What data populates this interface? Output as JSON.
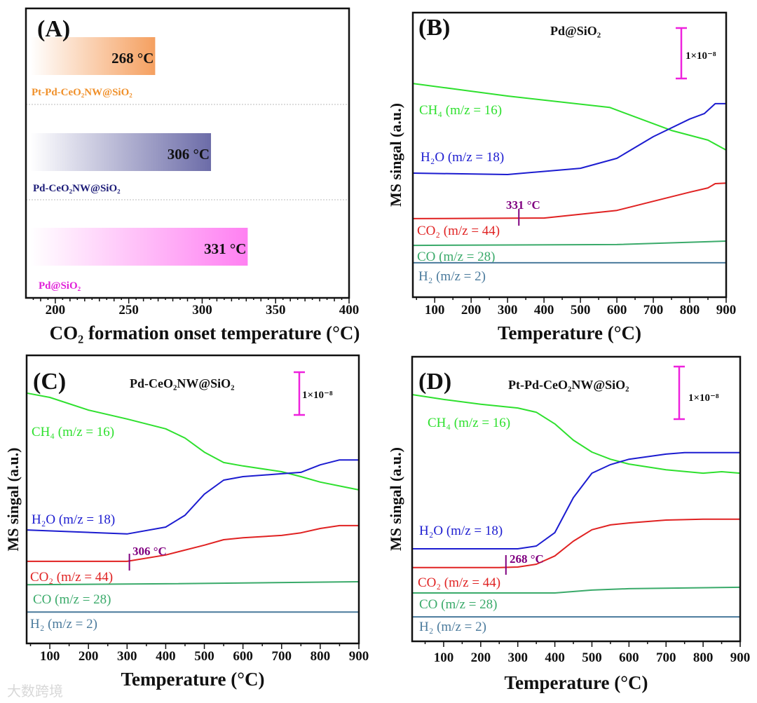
{
  "watermark": "大数跨境",
  "chart_data": [
    {
      "panel": "A",
      "type": "bar",
      "orientation": "horizontal",
      "title": "(A)",
      "categories": [
        "Pt-Pd-CeO₂NW@SiO₂",
        "Pd-CeO₂NW@SiO₂",
        "Pd@SiO₂"
      ],
      "values": [
        268,
        306,
        331
      ],
      "value_labels": [
        "268 °C",
        "306 °C",
        "331 °C"
      ],
      "colors": [
        "#f5a060",
        "#6c6ca8",
        "#ff80f2"
      ],
      "label_colors": [
        "#f0902a",
        "#1c1c78",
        "#e020d8"
      ],
      "xlabel": "CO₂ formation onset temperature (°C)",
      "xlim": [
        180,
        400
      ],
      "xticks": [
        "200",
        "250",
        "300",
        "350",
        "400"
      ]
    },
    {
      "panel": "B",
      "type": "line",
      "title": "(B)",
      "sample": "Pd@SiO₂",
      "xlabel": "Temperature (°C)",
      "ylabel": "MS singal (a.u.)",
      "xlim": [
        40,
        900
      ],
      "ylim": [
        0,
        100
      ],
      "xticks": [
        "100",
        "200",
        "300",
        "400",
        "500",
        "600",
        "700",
        "800",
        "900"
      ],
      "scale_bar_label": "1×10⁻⁸",
      "onset": {
        "temperature": 331,
        "label": "331 °C"
      },
      "series": [
        {
          "name": "CH₄ (m/z = 16)",
          "color": "#2ee02e",
          "x": [
            40,
            300,
            580,
            750,
            850,
            900
          ],
          "y": [
            75.1,
            70.7,
            66.7,
            58.6,
            55.2,
            51.7
          ]
        },
        {
          "name": "H₂O (m/z = 18)",
          "color": "#1c1cd0",
          "x": [
            40,
            300,
            500,
            600,
            700,
            800,
            840,
            870,
            900
          ],
          "y": [
            43.6,
            43.1,
            45.3,
            48.8,
            56.4,
            62.6,
            64.5,
            68.0,
            68.0
          ]
        },
        {
          "name": "CO₂ (m/z = 44)",
          "color": "#e02222",
          "x": [
            40,
            400,
            600,
            700,
            800,
            850,
            870,
            900
          ],
          "y": [
            27.6,
            27.8,
            30.5,
            33.7,
            36.9,
            38.4,
            39.9,
            40.1
          ]
        },
        {
          "name": "CO (m/z = 28)",
          "color": "#3aaa6a",
          "x": [
            40,
            600,
            900
          ],
          "y": [
            18.2,
            18.5,
            19.7
          ]
        },
        {
          "name": "H₂ (m/z = 2)",
          "color": "#4a7a9c",
          "x": [
            40,
            900
          ],
          "y": [
            12.1,
            12.1
          ]
        }
      ]
    },
    {
      "panel": "C",
      "type": "line",
      "title": "(C)",
      "sample": "Pd-CeO₂NW@SiO₂",
      "xlabel": "Temperature (°C)",
      "ylabel": "MS singal (a.u.)",
      "xlim": [
        40,
        900
      ],
      "ylim": [
        0,
        100
      ],
      "xticks": [
        "100",
        "200",
        "300",
        "400",
        "500",
        "600",
        "700",
        "800",
        "900"
      ],
      "scale_bar_label": "1×10⁻⁸",
      "onset": {
        "temperature": 306,
        "label": "306 °C"
      },
      "series": [
        {
          "name": "CH₄ (m/z = 16)",
          "color": "#2ee02e",
          "x": [
            40,
            100,
            200,
            300,
            400,
            450,
            500,
            550,
            600,
            700,
            750,
            800,
            900
          ],
          "y": [
            86.9,
            85.4,
            81.0,
            77.9,
            74.5,
            71.3,
            66.4,
            62.8,
            61.6,
            59.6,
            57.9,
            56.0,
            53.3
          ]
        },
        {
          "name": "H₂O (m/z = 18)",
          "color": "#1c1cd0",
          "x": [
            40,
            300,
            400,
            450,
            500,
            550,
            600,
            700,
            750,
            800,
            850,
            900
          ],
          "y": [
            39.4,
            38.0,
            40.4,
            44.5,
            51.8,
            56.7,
            57.9,
            58.9,
            59.4,
            62.0,
            63.7,
            63.7
          ]
        },
        {
          "name": "CO₂ (m/z = 44)",
          "color": "#e02222",
          "x": [
            40,
            300,
            400,
            500,
            550,
            600,
            700,
            750,
            800,
            850,
            900
          ],
          "y": [
            28.5,
            28.5,
            30.7,
            34.1,
            36.0,
            36.7,
            37.5,
            38.4,
            39.9,
            40.9,
            40.9
          ]
        },
        {
          "name": "CO (m/z = 28)",
          "color": "#3aaa6a",
          "x": [
            40,
            400,
            900
          ],
          "y": [
            20.4,
            20.7,
            21.4
          ]
        },
        {
          "name": "H₂ (m/z = 2)",
          "color": "#4a7a9c",
          "x": [
            40,
            900
          ],
          "y": [
            10.9,
            10.9
          ]
        }
      ]
    },
    {
      "panel": "D",
      "type": "line",
      "title": "(D)",
      "sample": "Pt-Pd-CeO₂NW@SiO₂",
      "xlabel": "Temperature (°C)",
      "ylabel": "MS singal (a.u.)",
      "xlim": [
        15,
        900
      ],
      "ylim": [
        0,
        100
      ],
      "xticks": [
        "100",
        "200",
        "300",
        "400",
        "500",
        "600",
        "700",
        "800",
        "900"
      ],
      "scale_bar_label": "1×10⁻⁸",
      "onset": {
        "temperature": 268,
        "label": "268 °C"
      },
      "series": [
        {
          "name": "CH₄ (m/z = 16)",
          "color": "#2ee02e",
          "x": [
            15,
            100,
            200,
            300,
            350,
            400,
            450,
            500,
            550,
            600,
            700,
            800,
            850,
            900
          ],
          "y": [
            86.7,
            85.0,
            83.3,
            82.0,
            80.5,
            76.4,
            70.7,
            66.5,
            64.0,
            62.3,
            60.3,
            59.1,
            59.6,
            59.1
          ]
        },
        {
          "name": "H₂O (m/z = 18)",
          "color": "#1c1cd0",
          "x": [
            15,
            300,
            350,
            400,
            450,
            500,
            550,
            600,
            700,
            750,
            900
          ],
          "y": [
            32.5,
            32.5,
            33.5,
            38.2,
            50.5,
            59.1,
            62.1,
            64.0,
            65.8,
            66.3,
            66.3
          ]
        },
        {
          "name": "CO₂ (m/z = 44)",
          "color": "#e02222",
          "x": [
            15,
            250,
            300,
            350,
            400,
            450,
            500,
            550,
            600,
            700,
            800,
            900
          ],
          "y": [
            25.9,
            25.9,
            26.1,
            27.1,
            30.0,
            35.2,
            39.2,
            40.9,
            41.6,
            42.6,
            42.9,
            42.9
          ]
        },
        {
          "name": "CO (m/z = 28)",
          "color": "#3aaa6a",
          "x": [
            15,
            400,
            500,
            600,
            900
          ],
          "y": [
            17.0,
            17.0,
            18.0,
            18.5,
            19.0
          ]
        },
        {
          "name": "H₂ (m/z = 2)",
          "color": "#4a7a9c",
          "x": [
            15,
            900
          ],
          "y": [
            8.6,
            8.6
          ]
        }
      ]
    }
  ]
}
